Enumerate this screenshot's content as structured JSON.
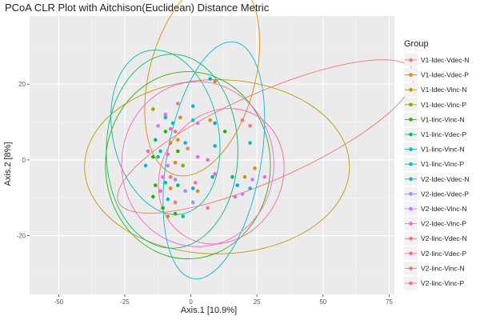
{
  "chart_data": {
    "type": "scatter",
    "title": "PCoA CLR Plot with Aitchison(Euclidean) Distance Metric",
    "xlabel": "Axis.1   [10.9%]",
    "ylabel": "Axis.2   [8%]",
    "xlim": [
      -61,
      77
    ],
    "ylim": [
      -35.5,
      38
    ],
    "x_ticks": [
      -50,
      -25,
      0,
      25,
      50,
      75
    ],
    "y_ticks": [
      -20,
      0,
      20
    ],
    "grid": true,
    "legend": {
      "title": "Group",
      "position": "right",
      "entries": [
        {
          "label": "V1-Idec-Vdec-N",
          "color": "#F8766D"
        },
        {
          "label": "V1-Idec-Vdec-P",
          "color": "#E18A00"
        },
        {
          "label": "V1-Idec-Vinc-N",
          "color": "#BE9C00"
        },
        {
          "label": "V1-Idec-Vinc-P",
          "color": "#8CAB00"
        },
        {
          "label": "V1-Iinc-Vinc-N",
          "color": "#24B700"
        },
        {
          "label": "V1-Iinc-Vdec-P",
          "color": "#00BE70"
        },
        {
          "label": "V1-Iinc-Vinc-N",
          "color": "#00C1AB"
        },
        {
          "label": "V1-Iinc-Vinc-P",
          "color": "#00BBDA"
        },
        {
          "label": "V2-Idec-Vdec-N",
          "color": "#00ACFC"
        },
        {
          "label": "V2-Idec-Vdec-P",
          "color": "#8B93FF"
        },
        {
          "label": "V2-Idec-Vinc-N",
          "color": "#D575FE"
        },
        {
          "label": "V2-Idec-Vinc-P",
          "color": "#F962DD"
        },
        {
          "label": "V2-Iinc-Vdec-N",
          "color": "#FF65AC"
        },
        {
          "label": "V2-Iinc-Vdec-P",
          "color": "#FF6C91"
        },
        {
          "label": "V2-Iinc-Vinc-N",
          "color": "#F8766D"
        },
        {
          "label": "V2-Iinc-Vinc-P",
          "color": "#FF6C91"
        }
      ]
    },
    "ellipses": [
      {
        "color": "#F8766D",
        "cx": 28.4,
        "cy": 6.2,
        "rx": 61,
        "ry": 11.5,
        "angle_deg": 24
      },
      {
        "color": "#E18A00",
        "cx": 4.3,
        "cy": 22.1,
        "rx": 20,
        "ry": 27,
        "angle_deg": -15
      },
      {
        "color": "#BE9C00",
        "cx": 9.9,
        "cy": -1.8,
        "rx": 50.1,
        "ry": 23,
        "angle_deg": 0
      },
      {
        "color": "#24B700",
        "cx": -1.1,
        "cy": -1.4,
        "rx": 31.2,
        "ry": 24.7,
        "angle_deg": 0
      },
      {
        "color": "#00BE70",
        "cx": -7.1,
        "cy": 2.3,
        "rx": 24.9,
        "ry": 25.6,
        "angle_deg": 0
      },
      {
        "color": "#00BBDA",
        "cx": 8.7,
        "cy": -0.1,
        "rx": 17.8,
        "ry": 31.7,
        "angle_deg": -10
      },
      {
        "color": "#00C1AB",
        "cx": -9.6,
        "cy": 7.3,
        "rx": 20,
        "ry": 22,
        "angle_deg": 12
      },
      {
        "color": "#F962DD",
        "cx": 2.6,
        "cy": -1.1,
        "rx": 28.8,
        "ry": 21.8,
        "angle_deg": 0
      },
      {
        "color": "#FF65AC",
        "cx": 11.5,
        "cy": -4.3,
        "rx": 22.8,
        "ry": 18.5,
        "angle_deg": -30
      }
    ],
    "points": [
      {
        "x": -4.9,
        "y": 14.9,
        "color": "#F8766D"
      },
      {
        "x": -9.6,
        "y": 12.0,
        "color": "#F962DD"
      },
      {
        "x": -9.6,
        "y": 11.2,
        "color": "#00BBDA"
      },
      {
        "x": -14.3,
        "y": 13.4,
        "color": "#8CAB00"
      },
      {
        "x": -4.0,
        "y": 11.2,
        "color": "#E18A00"
      },
      {
        "x": 0.8,
        "y": 14.2,
        "color": "#00BBDA"
      },
      {
        "x": -6.8,
        "y": 9.7,
        "color": "#00C1AB"
      },
      {
        "x": -12.4,
        "y": 9.0,
        "color": "#D575FE"
      },
      {
        "x": -7.7,
        "y": 8.2,
        "color": "#FF65AC"
      },
      {
        "x": -5.9,
        "y": 7.5,
        "color": "#F8766D"
      },
      {
        "x": -9.6,
        "y": 7.5,
        "color": "#24B700"
      },
      {
        "x": -13.4,
        "y": 5.3,
        "color": "#00BE70"
      },
      {
        "x": -4.9,
        "y": 5.3,
        "color": "#BE9C00"
      },
      {
        "x": -7.7,
        "y": 4.5,
        "color": "#E18A00"
      },
      {
        "x": -2.1,
        "y": 4.5,
        "color": "#00ACFC"
      },
      {
        "x": -1.2,
        "y": 3.0,
        "color": "#F8766D"
      },
      {
        "x": -4.9,
        "y": 2.3,
        "color": "#24B700"
      },
      {
        "x": -8.7,
        "y": 1.5,
        "color": "#FF65AC"
      },
      {
        "x": -11.5,
        "y": 2.3,
        "color": "#00BBDA"
      },
      {
        "x": -16.2,
        "y": 2.3,
        "color": "#F962DD"
      },
      {
        "x": -12.4,
        "y": 0.8,
        "color": "#00C1AB"
      },
      {
        "x": -14.3,
        "y": 0.8,
        "color": "#24B700"
      },
      {
        "x": -5.9,
        "y": -0.7,
        "color": "#E18A00"
      },
      {
        "x": -3.0,
        "y": -1.5,
        "color": "#8CAB00"
      },
      {
        "x": -8.7,
        "y": -1.5,
        "color": "#D575FE"
      },
      {
        "x": -17.1,
        "y": -1.5,
        "color": "#00BBDA"
      },
      {
        "x": -10.6,
        "y": -4.5,
        "color": "#F962DD"
      },
      {
        "x": -7.7,
        "y": -4.5,
        "color": "#FF65AC"
      },
      {
        "x": -5.9,
        "y": -5.2,
        "color": "#8B93FF"
      },
      {
        "x": -9.6,
        "y": -6.0,
        "color": "#00C1AB"
      },
      {
        "x": -13.4,
        "y": -6.7,
        "color": "#24B700"
      },
      {
        "x": -4.9,
        "y": -6.7,
        "color": "#00BE70"
      },
      {
        "x": -7.7,
        "y": -7.5,
        "color": "#E18A00"
      },
      {
        "x": -11.5,
        "y": -8.2,
        "color": "#FF65AC"
      },
      {
        "x": -2.1,
        "y": -8.2,
        "color": "#8B93FF"
      },
      {
        "x": -14.3,
        "y": -9.7,
        "color": "#24B700"
      },
      {
        "x": -8.7,
        "y": -10.4,
        "color": "#00BBDA"
      },
      {
        "x": -5.9,
        "y": -11.2,
        "color": "#F8766D"
      },
      {
        "x": -10.6,
        "y": -12.7,
        "color": "#24B700"
      },
      {
        "x": -5.9,
        "y": -14.2,
        "color": "#24B700"
      },
      {
        "x": -3.0,
        "y": -14.9,
        "color": "#00C1AB"
      },
      {
        "x": -8.7,
        "y": -14.9,
        "color": "#E18A00"
      },
      {
        "x": 0.8,
        "y": -11.2,
        "color": "#8B93FF"
      },
      {
        "x": 2.6,
        "y": -8.2,
        "color": "#E18A00"
      },
      {
        "x": 7.3,
        "y": 21.4,
        "color": "#00ACFC"
      },
      {
        "x": 9.1,
        "y": 20.7,
        "color": "#E18A00"
      },
      {
        "x": 0.8,
        "y": 10.5,
        "color": "#00BBDA"
      },
      {
        "x": 2.6,
        "y": 9.7,
        "color": "#D575FE"
      },
      {
        "x": 7.3,
        "y": 10.5,
        "color": "#E18A00"
      },
      {
        "x": 9.1,
        "y": 9.7,
        "color": "#00ACFC"
      },
      {
        "x": 9.1,
        "y": 3.7,
        "color": "#00BBDA"
      },
      {
        "x": 12.9,
        "y": 7.5,
        "color": "#24B700"
      },
      {
        "x": 19.5,
        "y": 10.5,
        "color": "#F8766D"
      },
      {
        "x": 22.4,
        "y": 9.0,
        "color": "#F8766D"
      },
      {
        "x": 22.4,
        "y": 4.5,
        "color": "#00C1AB"
      },
      {
        "x": 2.6,
        "y": 0.8,
        "color": "#F962DD"
      },
      {
        "x": 6.4,
        "y": 0.0,
        "color": "#F962DD"
      },
      {
        "x": 15.7,
        "y": -4.5,
        "color": "#00BE70"
      },
      {
        "x": 20.4,
        "y": -4.5,
        "color": "#BE9C00"
      },
      {
        "x": 24.2,
        "y": -2.2,
        "color": "#E18A00"
      },
      {
        "x": 27.9,
        "y": -4.5,
        "color": "#F962DD"
      },
      {
        "x": 22.4,
        "y": -7.5,
        "color": "#00BBDA"
      },
      {
        "x": 23.3,
        "y": -5.2,
        "color": "#D575FE"
      },
      {
        "x": 8.2,
        "y": -4.5,
        "color": "#00C1AB"
      },
      {
        "x": 9.1,
        "y": -3.7,
        "color": "#F962DD"
      },
      {
        "x": 16.7,
        "y": -9.7,
        "color": "#F962DD"
      },
      {
        "x": 19.5,
        "y": -9.0,
        "color": "#D575FE"
      },
      {
        "x": 6.4,
        "y": -12.7,
        "color": "#FF65AC"
      },
      {
        "x": 17.6,
        "y": -6.7,
        "color": "#00ACFC"
      },
      {
        "x": 0.8,
        "y": -7.5,
        "color": "#00ACFC"
      },
      {
        "x": 1.7,
        "y": -6.0,
        "color": "#FF6C91"
      }
    ]
  }
}
